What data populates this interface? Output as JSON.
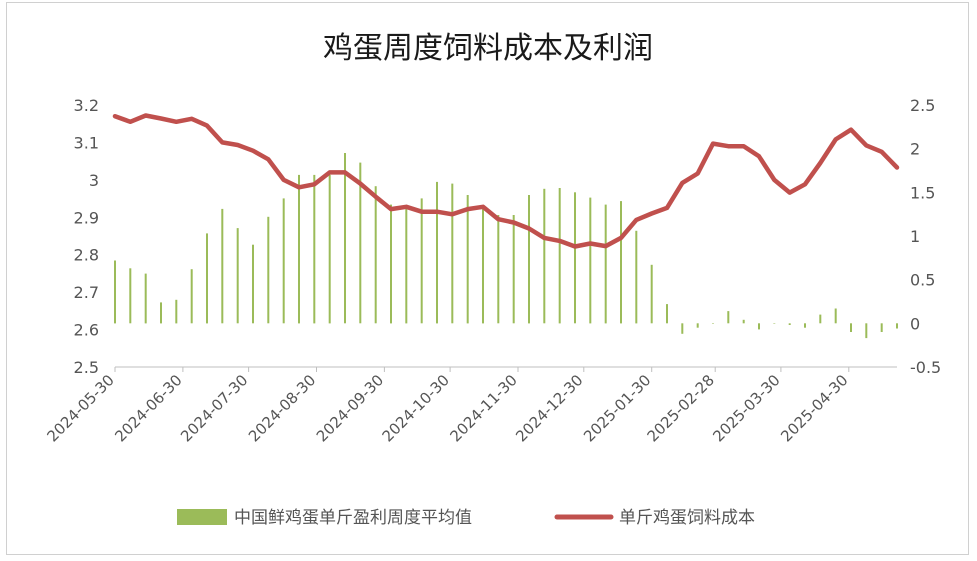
{
  "chart_data": {
    "type": "bar+line",
    "title": "鸡蛋周度饲料成本及利润",
    "grid": false,
    "legend_position": "bottom",
    "left_axis": {
      "min": 2.5,
      "max": 3.2,
      "step": 0.1,
      "tick_labels": [
        "2.5",
        "2.6",
        "2.7",
        "2.8",
        "2.9",
        "3",
        "3.1",
        "3.2"
      ]
    },
    "right_axis": {
      "min": -0.5,
      "max": 2.5,
      "step": 0.5,
      "tick_labels": [
        "-0.5",
        "0",
        "0.5",
        "1",
        "1.5",
        "2",
        "2.5"
      ]
    },
    "x_tick_labels": [
      "2024-05-30",
      "2024-06-30",
      "2024-07-30",
      "2024-08-30",
      "2024-09-30",
      "2024-10-30",
      "2024-11-30",
      "2024-12-30",
      "2025-01-30",
      "2025-02-28",
      "2025-03-30",
      "2025-04-30"
    ],
    "x_range": [
      "2024-05-30",
      "2025-05-22"
    ],
    "series": [
      {
        "name": "中国鲜鸡蛋单斤盈利周度平均值",
        "type": "bar",
        "axis": "right",
        "color": "#9bbb59",
        "points": [
          [
            "2024-05-30",
            0.72
          ],
          [
            "2024-06-06",
            0.63
          ],
          [
            "2024-06-13",
            0.57
          ],
          [
            "2024-06-20",
            0.24
          ],
          [
            "2024-06-27",
            0.27
          ],
          [
            "2024-07-04",
            0.62
          ],
          [
            "2024-07-11",
            1.03
          ],
          [
            "2024-07-18",
            1.31
          ],
          [
            "2024-07-25",
            1.09
          ],
          [
            "2024-08-01",
            0.9
          ],
          [
            "2024-08-08",
            1.22
          ],
          [
            "2024-08-15",
            1.43
          ],
          [
            "2024-08-22",
            1.7
          ],
          [
            "2024-08-29",
            1.7
          ],
          [
            "2024-09-05",
            1.7
          ],
          [
            "2024-09-12",
            1.95
          ],
          [
            "2024-09-19",
            1.84
          ],
          [
            "2024-09-26",
            1.57
          ],
          [
            "2024-10-03",
            1.36
          ],
          [
            "2024-10-10",
            1.32
          ],
          [
            "2024-10-17",
            1.43
          ],
          [
            "2024-10-24",
            1.62
          ],
          [
            "2024-10-31",
            1.6
          ],
          [
            "2024-11-07",
            1.47
          ],
          [
            "2024-11-14",
            1.33
          ],
          [
            "2024-11-21",
            1.24
          ],
          [
            "2024-11-28",
            1.24
          ],
          [
            "2024-12-05",
            1.47
          ],
          [
            "2024-12-12",
            1.54
          ],
          [
            "2024-12-19",
            1.55
          ],
          [
            "2024-12-26",
            1.5
          ],
          [
            "2025-01-02",
            1.44
          ],
          [
            "2025-01-09",
            1.36
          ],
          [
            "2025-01-16",
            1.4
          ],
          [
            "2025-01-23",
            1.06
          ],
          [
            "2025-01-30",
            0.67
          ],
          [
            "2025-02-06",
            0.22
          ],
          [
            "2025-02-13",
            -0.12
          ],
          [
            "2025-02-20",
            -0.05
          ],
          [
            "2025-02-27",
            0.0
          ],
          [
            "2025-03-06",
            0.14
          ],
          [
            "2025-03-13",
            0.04
          ],
          [
            "2025-03-20",
            -0.07
          ],
          [
            "2025-03-27",
            0.0
          ],
          [
            "2025-04-03",
            -0.02
          ],
          [
            "2025-04-10",
            -0.05
          ],
          [
            "2025-04-17",
            0.1
          ],
          [
            "2025-04-24",
            0.17
          ],
          [
            "2025-05-01",
            -0.1
          ],
          [
            "2025-05-08",
            -0.17
          ],
          [
            "2025-05-15",
            -0.1
          ],
          [
            "2025-05-22",
            -0.06
          ]
        ]
      },
      {
        "name": "单斤鸡蛋饲料成本",
        "type": "line",
        "axis": "left",
        "color": "#c0504d",
        "points": [
          [
            "2024-05-30",
            3.17
          ],
          [
            "2024-06-06",
            3.155
          ],
          [
            "2024-06-13",
            3.172
          ],
          [
            "2024-06-20",
            3.164
          ],
          [
            "2024-06-27",
            3.155
          ],
          [
            "2024-07-04",
            3.163
          ],
          [
            "2024-07-11",
            3.145
          ],
          [
            "2024-07-18",
            3.1
          ],
          [
            "2024-07-25",
            3.093
          ],
          [
            "2024-08-01",
            3.078
          ],
          [
            "2024-08-08",
            3.055
          ],
          [
            "2024-08-15",
            3.0
          ],
          [
            "2024-08-22",
            2.98
          ],
          [
            "2024-08-29",
            2.988
          ],
          [
            "2024-09-05",
            3.02
          ],
          [
            "2024-09-12",
            3.02
          ],
          [
            "2024-09-19",
            2.99
          ],
          [
            "2024-09-26",
            2.955
          ],
          [
            "2024-10-03",
            2.922
          ],
          [
            "2024-10-10",
            2.928
          ],
          [
            "2024-10-17",
            2.915
          ],
          [
            "2024-10-24",
            2.915
          ],
          [
            "2024-10-31",
            2.908
          ],
          [
            "2024-11-07",
            2.922
          ],
          [
            "2024-11-14",
            2.928
          ],
          [
            "2024-11-21",
            2.895
          ],
          [
            "2024-11-28",
            2.886
          ],
          [
            "2024-12-05",
            2.87
          ],
          [
            "2024-12-12",
            2.845
          ],
          [
            "2024-12-19",
            2.837
          ],
          [
            "2024-12-26",
            2.822
          ],
          [
            "2025-01-02",
            2.83
          ],
          [
            "2025-01-09",
            2.823
          ],
          [
            "2025-01-16",
            2.845
          ],
          [
            "2025-01-23",
            2.893
          ],
          [
            "2025-01-30",
            2.91
          ],
          [
            "2025-02-06",
            2.925
          ],
          [
            "2025-02-13",
            2.992
          ],
          [
            "2025-02-20",
            3.017
          ],
          [
            "2025-02-27",
            3.097
          ],
          [
            "2025-03-06",
            3.09
          ],
          [
            "2025-03-13",
            3.09
          ],
          [
            "2025-03-20",
            3.063
          ],
          [
            "2025-03-27",
            3.0
          ],
          [
            "2025-04-03",
            2.966
          ],
          [
            "2025-04-10",
            2.988
          ],
          [
            "2025-04-17",
            3.045
          ],
          [
            "2025-04-24",
            3.108
          ],
          [
            "2025-05-01",
            3.134
          ],
          [
            "2025-05-08",
            3.092
          ],
          [
            "2025-05-15",
            3.075
          ],
          [
            "2025-05-22",
            3.033
          ]
        ]
      }
    ]
  }
}
